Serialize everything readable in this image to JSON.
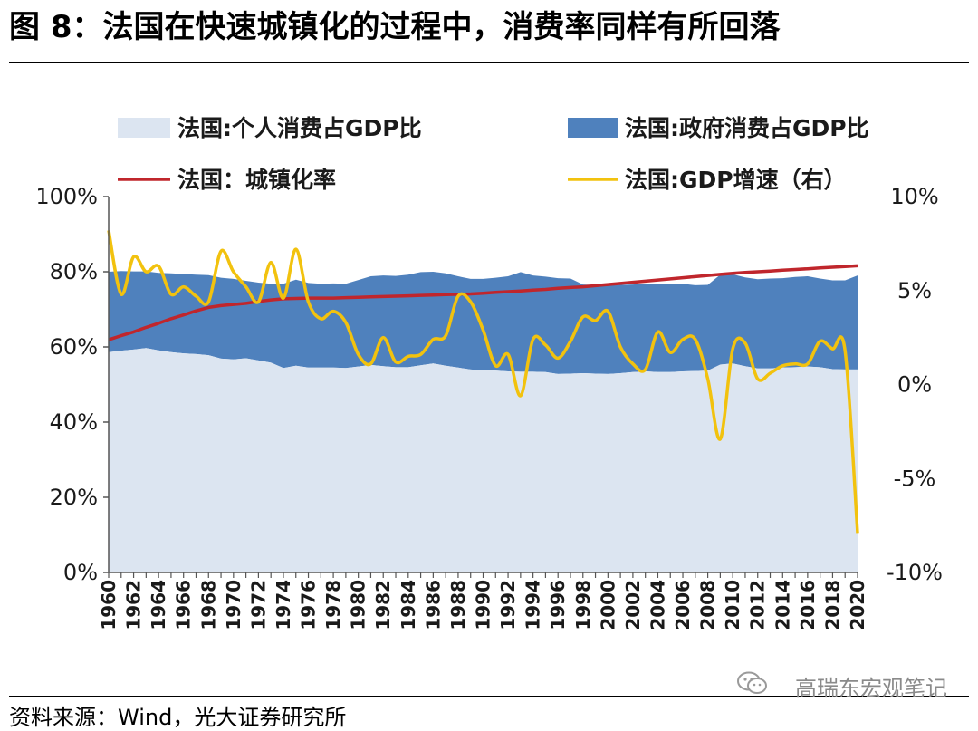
{
  "header": {
    "title": "图 8：法国在快速城镇化的过程中，消费率同样有所回落"
  },
  "footer": {
    "source": "资料来源：Wind，光大证券研究所",
    "watermark": "高瑞东宏观笔记"
  },
  "colors": {
    "private": "#dce5f1",
    "government": "#4f81bd",
    "urban": "#c0262c",
    "gdp": "#f2c20e",
    "axis": "#555555"
  },
  "chart_data": {
    "type": "area",
    "title": "",
    "xlabel": "",
    "ylabel": "",
    "ylim": [
      0,
      100
    ],
    "y2lim": [
      -10,
      10
    ],
    "yticks": [
      "0%",
      "20%",
      "40%",
      "60%",
      "80%",
      "100%"
    ],
    "y2ticks": [
      "-10%",
      "-5%",
      "0%",
      "5%",
      "10%"
    ],
    "legend_position": "top",
    "legend": [
      "法国:个人消费占GDP比",
      "法国:政府消费占GDP比",
      "法国：城镇化率",
      "法国:GDP增速（右）"
    ],
    "x": [
      1960,
      1961,
      1962,
      1963,
      1964,
      1965,
      1966,
      1967,
      1968,
      1969,
      1970,
      1971,
      1972,
      1973,
      1974,
      1975,
      1976,
      1977,
      1978,
      1979,
      1980,
      1981,
      1982,
      1983,
      1984,
      1985,
      1986,
      1987,
      1988,
      1989,
      1990,
      1991,
      1992,
      1993,
      1994,
      1995,
      1996,
      1997,
      1998,
      1999,
      2000,
      2001,
      2002,
      2003,
      2004,
      2005,
      2006,
      2007,
      2008,
      2009,
      2010,
      2011,
      2012,
      2013,
      2014,
      2015,
      2016,
      2017,
      2018,
      2019,
      2020
    ],
    "xtick_labels": [
      "1960",
      "1962",
      "1964",
      "1966",
      "1968",
      "1970",
      "1972",
      "1974",
      "1976",
      "1978",
      "1980",
      "1982",
      "1984",
      "1986",
      "1988",
      "1990",
      "1992",
      "1994",
      "1996",
      "1998",
      "2000",
      "2002",
      "2004",
      "2006",
      "2008",
      "2010",
      "2012",
      "2014",
      "2016",
      "2018",
      "2020"
    ],
    "series": [
      {
        "name": "法国:个人消费占GDP比",
        "axis": "left",
        "type": "area",
        "values": [
          58.6,
          59.0,
          59.3,
          59.7,
          59.1,
          58.6,
          58.3,
          58.1,
          57.8,
          56.9,
          56.7,
          57.0,
          56.4,
          55.8,
          54.4,
          55.0,
          54.5,
          54.5,
          54.5,
          54.4,
          54.8,
          55.2,
          54.9,
          54.6,
          54.6,
          55.1,
          55.6,
          55.0,
          54.5,
          54.0,
          53.8,
          53.7,
          53.5,
          53.4,
          53.4,
          53.3,
          52.8,
          52.9,
          53.0,
          52.9,
          52.8,
          53.0,
          53.3,
          53.5,
          53.3,
          53.3,
          53.5,
          53.6,
          53.7,
          55.3,
          55.6,
          54.9,
          54.3,
          54.3,
          54.5,
          54.6,
          54.8,
          54.6,
          54.1,
          54.0,
          54.0
        ]
      },
      {
        "name": "法国:政府消费占GDP比",
        "axis": "left",
        "type": "stacked-area",
        "values": [
          21.4,
          21.2,
          20.8,
          20.4,
          20.6,
          21.0,
          21.1,
          21.1,
          21.3,
          21.5,
          21.4,
          20.6,
          20.7,
          21.0,
          22.4,
          22.9,
          22.5,
          22.3,
          22.4,
          22.4,
          23.0,
          23.6,
          24.1,
          24.3,
          24.6,
          24.8,
          24.4,
          24.6,
          24.3,
          24.1,
          24.3,
          24.7,
          25.3,
          26.5,
          25.6,
          25.4,
          25.5,
          25.3,
          23.6,
          23.6,
          23.6,
          23.5,
          23.3,
          23.3,
          23.4,
          23.5,
          23.3,
          22.8,
          22.8,
          23.9,
          23.7,
          23.6,
          23.7,
          23.9,
          23.8,
          24.0,
          24.0,
          23.6,
          23.6,
          23.7,
          25.0
        ]
      },
      {
        "name": "法国：城镇化率",
        "axis": "left",
        "type": "line",
        "values": [
          61.9,
          63.0,
          64.0,
          65.2,
          66.3,
          67.5,
          68.5,
          69.6,
          70.5,
          71.0,
          71.3,
          71.6,
          72.1,
          72.5,
          72.8,
          72.9,
          73.0,
          73.0,
          73.0,
          73.1,
          73.2,
          73.3,
          73.4,
          73.5,
          73.6,
          73.7,
          73.8,
          73.9,
          74.0,
          74.1,
          74.3,
          74.5,
          74.7,
          74.9,
          75.1,
          75.3,
          75.6,
          75.8,
          76.0,
          76.3,
          76.6,
          76.9,
          77.2,
          77.5,
          77.8,
          78.1,
          78.4,
          78.7,
          79.0,
          79.3,
          79.6,
          79.8,
          80.0,
          80.2,
          80.4,
          80.6,
          80.8,
          81.0,
          81.2,
          81.4,
          81.6
        ]
      },
      {
        "name": "法国:GDP增速（右）",
        "axis": "right",
        "type": "line",
        "values": [
          8.2,
          4.8,
          6.8,
          6.0,
          6.3,
          4.8,
          5.2,
          4.7,
          4.4,
          7.1,
          6.0,
          5.2,
          4.4,
          6.5,
          4.6,
          7.2,
          4.4,
          3.5,
          3.9,
          3.3,
          1.6,
          1.1,
          2.5,
          1.2,
          1.5,
          1.6,
          2.4,
          2.6,
          4.7,
          4.4,
          2.9,
          1.0,
          1.6,
          -0.6,
          2.4,
          2.1,
          1.4,
          2.3,
          3.6,
          3.4,
          3.9,
          2.0,
          1.1,
          0.8,
          2.8,
          1.7,
          2.4,
          2.4,
          0.3,
          -2.9,
          1.9,
          2.2,
          0.3,
          0.6,
          1.0,
          1.1,
          1.1,
          2.3,
          1.9,
          1.8,
          -7.9
        ]
      }
    ]
  }
}
